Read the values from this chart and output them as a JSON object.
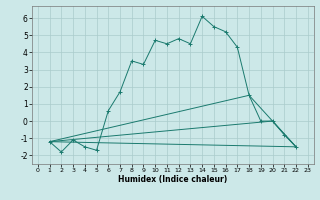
{
  "title": "",
  "xlabel": "Humidex (Indice chaleur)",
  "bg_color": "#cce8e8",
  "grid_color": "#aacccc",
  "line_color": "#1a7a6e",
  "xlim": [
    -0.5,
    23.5
  ],
  "ylim": [
    -2.5,
    6.7
  ],
  "xticks": [
    0,
    1,
    2,
    3,
    4,
    5,
    6,
    7,
    8,
    9,
    10,
    11,
    12,
    13,
    14,
    15,
    16,
    17,
    18,
    19,
    20,
    21,
    22,
    23
  ],
  "yticks": [
    -2,
    -1,
    0,
    1,
    2,
    3,
    4,
    5,
    6
  ],
  "series0": {
    "x": [
      1,
      2,
      3,
      4,
      5,
      6,
      7,
      8,
      9,
      10,
      11,
      12,
      13,
      14,
      15,
      16,
      17,
      18,
      19,
      20,
      21,
      22
    ],
    "y": [
      -1.2,
      -1.8,
      -1.1,
      -1.5,
      -1.7,
      0.6,
      1.7,
      3.5,
      3.3,
      4.7,
      4.5,
      4.8,
      4.5,
      6.1,
      5.5,
      5.2,
      4.3,
      1.5,
      0.0,
      0.0,
      -0.8,
      -1.5
    ]
  },
  "aux_lines": [
    {
      "x": [
        1,
        22
      ],
      "y": [
        -1.2,
        -1.5
      ]
    },
    {
      "x": [
        1,
        20,
        22
      ],
      "y": [
        -1.2,
        0.0,
        -1.5
      ]
    },
    {
      "x": [
        1,
        18,
        22
      ],
      "y": [
        -1.2,
        1.5,
        -1.5
      ]
    }
  ]
}
